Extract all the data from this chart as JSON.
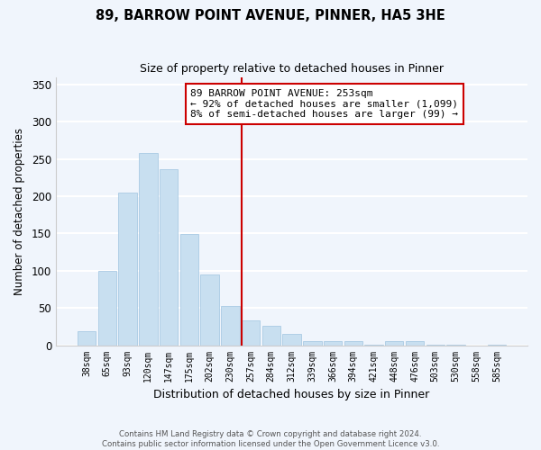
{
  "title": "89, BARROW POINT AVENUE, PINNER, HA5 3HE",
  "subtitle": "Size of property relative to detached houses in Pinner",
  "xlabel": "Distribution of detached houses by size in Pinner",
  "ylabel": "Number of detached properties",
  "bar_labels": [
    "38sqm",
    "65sqm",
    "93sqm",
    "120sqm",
    "147sqm",
    "175sqm",
    "202sqm",
    "230sqm",
    "257sqm",
    "284sqm",
    "312sqm",
    "339sqm",
    "366sqm",
    "394sqm",
    "421sqm",
    "448sqm",
    "476sqm",
    "503sqm",
    "530sqm",
    "558sqm",
    "585sqm"
  ],
  "bar_heights": [
    19,
    100,
    205,
    258,
    236,
    149,
    95,
    53,
    33,
    26,
    15,
    6,
    5,
    5,
    1,
    5,
    5,
    1,
    1,
    0,
    1
  ],
  "bar_color": "#c8dff0",
  "bar_edge_color": "#a0c4e0",
  "vline_color": "#cc0000",
  "annotation_title": "89 BARROW POINT AVENUE: 253sqm",
  "annotation_line1": "← 92% of detached houses are smaller (1,099)",
  "annotation_line2": "8% of semi-detached houses are larger (99) →",
  "annotation_box_color": "#ffffff",
  "annotation_box_edgecolor": "#cc0000",
  "ylim": [
    0,
    360
  ],
  "yticks": [
    0,
    50,
    100,
    150,
    200,
    250,
    300,
    350
  ],
  "footer_line1": "Contains HM Land Registry data © Crown copyright and database right 2024.",
  "footer_line2": "Contains public sector information licensed under the Open Government Licence v3.0.",
  "background_color": "#f0f5fc",
  "grid_color": "#ffffff"
}
